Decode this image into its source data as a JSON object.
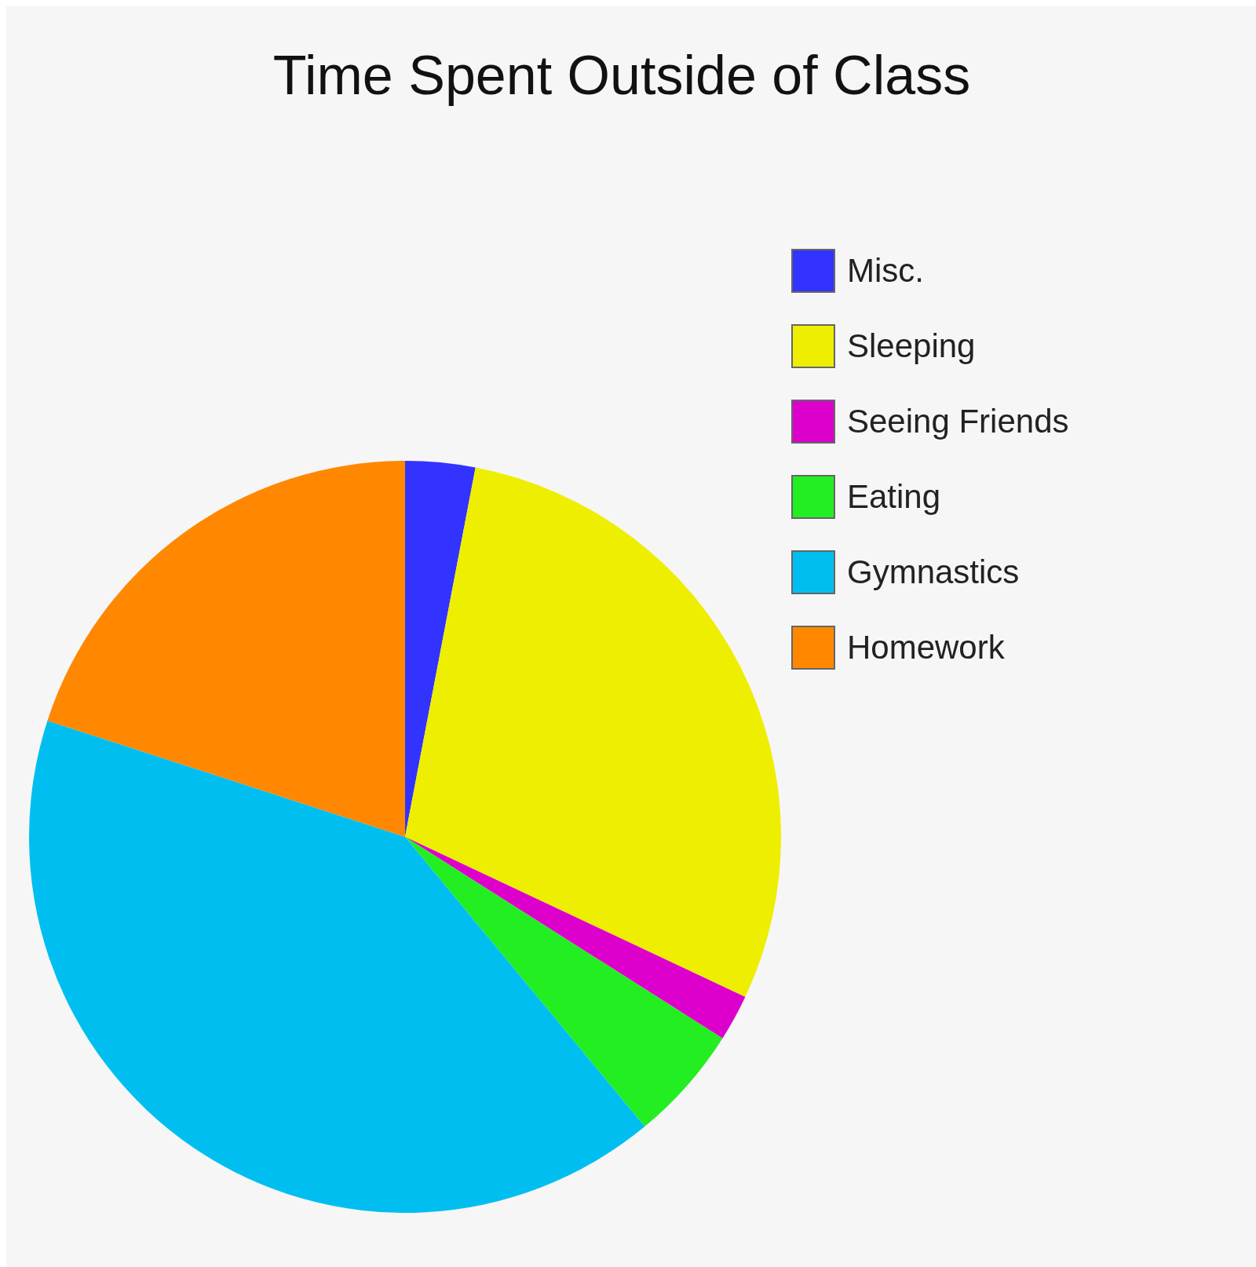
{
  "chart_data": {
    "type": "pie",
    "title": "Time Spent Outside of Class",
    "categories": [
      "Misc.",
      "Sleeping",
      "Seeing Friends",
      "Eating",
      "Gymnastics",
      "Homework"
    ],
    "values": [
      3,
      29,
      2,
      5,
      41,
      20
    ],
    "colors": [
      "#3333ff",
      "#eeee00",
      "#dd00cc",
      "#22ee22",
      "#00bff0",
      "#ff8800"
    ],
    "legend": "right"
  }
}
